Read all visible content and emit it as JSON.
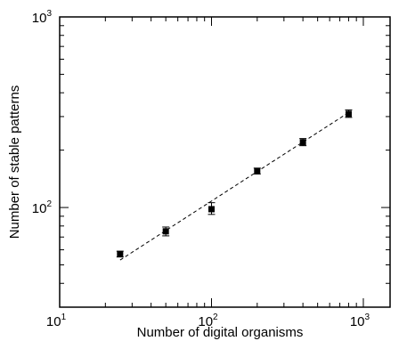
{
  "chart_data": {
    "type": "scatter",
    "title": "",
    "xlabel": "Number of digital organisms",
    "ylabel": "Number of stable patterns",
    "xscale": "log",
    "yscale": "log",
    "xlim": [
      10,
      1500
    ],
    "ylim": [
      30,
      1000
    ],
    "grid": false,
    "legend": "none",
    "x_tick_labels": [
      {
        "value": 10,
        "base": "10",
        "exp": "1"
      },
      {
        "value": 100,
        "base": "10",
        "exp": "2"
      },
      {
        "value": 1000,
        "base": "10",
        "exp": "3"
      }
    ],
    "y_tick_labels": [
      {
        "value": 100,
        "base": "10",
        "exp": "2"
      },
      {
        "value": 1000,
        "base": "10",
        "exp": "3"
      }
    ],
    "series": [
      {
        "marker": "square",
        "color": "#000000",
        "x": [
          25,
          50,
          100,
          200,
          400,
          800
        ],
        "y": [
          57,
          75,
          98,
          155,
          220,
          310
        ],
        "err_low": [
          2,
          4,
          6,
          5,
          9,
          13
        ],
        "err_high": [
          2,
          4,
          8,
          6,
          10,
          15
        ]
      }
    ],
    "fit_line": {
      "style": "dashed",
      "color": "#000000",
      "x": [
        25,
        800
      ],
      "y": [
        53,
        315
      ]
    }
  }
}
